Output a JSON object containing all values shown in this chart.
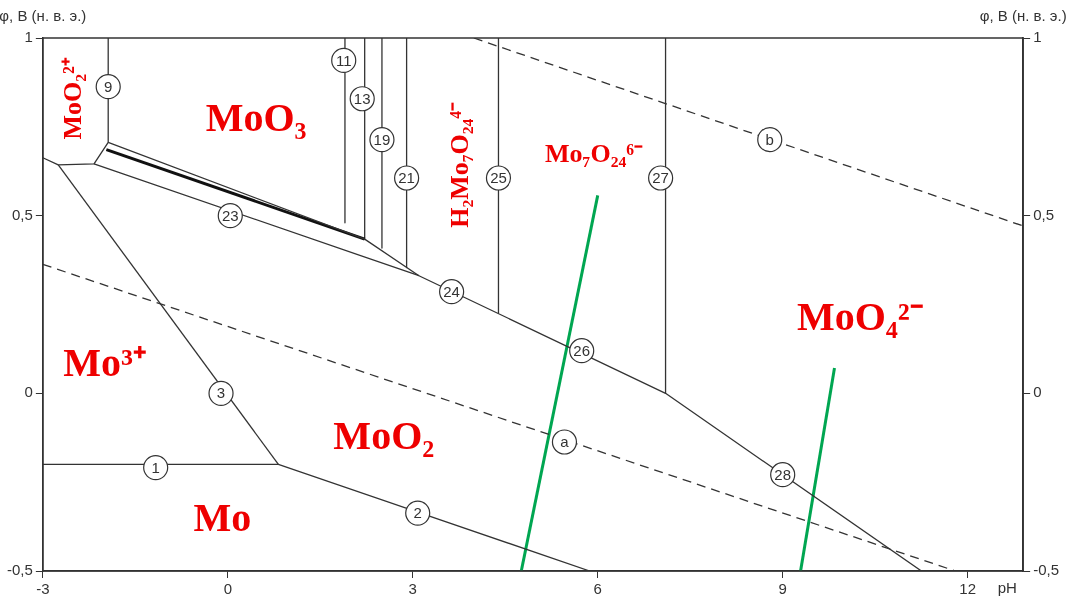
{
  "chart_data": {
    "type": "line",
    "xlabel": "pH",
    "ylabel": "φ, В (н. в. э.)",
    "y2label": "φ, В (н. в. э.)",
    "xlim": [
      -3,
      12.9
    ],
    "xticks": [
      -3,
      0,
      3,
      6,
      9,
      12
    ],
    "ylim": [
      -0.5,
      1
    ],
    "yticks": [
      {
        "value": -0.5,
        "label": "-0,5"
      },
      {
        "value": 0,
        "label": "0"
      },
      {
        "value": 0.5,
        "label": "0,5"
      },
      {
        "value": 1,
        "label": "1"
      }
    ],
    "y2lim": [
      -0.5,
      1
    ],
    "y2ticks": [
      {
        "value": -0.5,
        "label": "-0,5"
      },
      {
        "value": 0,
        "label": "0"
      },
      {
        "value": 0.5,
        "label": "0,5"
      },
      {
        "value": 1,
        "label": "1"
      }
    ],
    "grid": false,
    "legend": false,
    "marker": "none",
    "series": [
      {
        "type": "line",
        "color": "#333333",
        "x": [
          -3,
          -2.75,
          -2.17,
          -1.94,
          -1.94
        ],
        "values": [
          0.663,
          0.643,
          0.646,
          0.706,
          1
        ]
      },
      {
        "type": "line",
        "color": "#333333",
        "x": [
          -3,
          0.82,
          5.87
        ],
        "values": [
          -0.2,
          -0.2,
          -0.5
        ]
      },
      {
        "type": "line",
        "color": "#333333",
        "x": [
          -2.75,
          0.82
        ],
        "values": [
          0.643,
          -0.2
        ]
      },
      {
        "type": "line",
        "color": "#333333",
        "x": [
          -2.17,
          3.1,
          7.1,
          11.25
        ],
        "values": [
          0.646,
          0.331,
          0,
          -0.5
        ]
      },
      {
        "type": "line",
        "color": "#333333",
        "x": [
          -1.94,
          2.22,
          3.1
        ],
        "values": [
          0.706,
          0.434,
          0.331
        ]
      },
      {
        "type": "line",
        "color": "#111111",
        "x": [
          -1.97,
          2.22
        ],
        "values": [
          0.686,
          0.434
        ]
      },
      {
        "type": "line",
        "color": "#333333",
        "x": [
          1.9,
          1.9
        ],
        "values": [
          1,
          0.48
        ]
      },
      {
        "type": "line",
        "color": "#333333",
        "x": [
          2.22,
          2.22
        ],
        "values": [
          1,
          0.434
        ]
      },
      {
        "type": "line",
        "color": "#333333",
        "x": [
          2.5,
          2.5
        ],
        "values": [
          1,
          0.409
        ]
      },
      {
        "type": "line",
        "color": "#333333",
        "x": [
          2.9,
          2.9
        ],
        "values": [
          1,
          0.354
        ]
      },
      {
        "type": "line",
        "color": "#333333",
        "x": [
          4.39,
          4.39
        ],
        "values": [
          1,
          0.226
        ]
      },
      {
        "type": "line",
        "color": "#333333",
        "x": [
          7.1,
          7.1
        ],
        "values": [
          1,
          0
        ]
      },
      {
        "type": "line",
        "color": "#333333",
        "line_style": "dashed",
        "x": [
          -3,
          11.8
        ],
        "values": [
          0.363,
          -0.5
        ]
      },
      {
        "type": "line",
        "color": "#333333",
        "line_style": "dashed",
        "x": [
          3.99,
          12.9
        ],
        "values": [
          1,
          0.471
        ]
      },
      {
        "type": "line",
        "color": "#00a651",
        "x": [
          6,
          4.76
        ],
        "values": [
          0.557,
          -0.5
        ]
      },
      {
        "type": "line",
        "color": "#00a651",
        "x": [
          9.84,
          9.29
        ],
        "values": [
          0.071,
          -0.5
        ]
      }
    ],
    "annotations": [
      "MoO₂²⁺",
      "MoO₃",
      "H₂Mo₇O₂₄⁴⁻",
      "Mo₇O₂₄⁶⁻",
      "MoO₄²⁻",
      "Mo³⁺",
      "MoO₂",
      "Mo",
      {
        "text": "9",
        "x": -1.94,
        "y": 0.863
      },
      {
        "text": "11",
        "x": 1.88,
        "y": 0.937
      },
      {
        "text": "13",
        "x": 2.18,
        "y": 0.829
      },
      {
        "text": "19",
        "x": 2.5,
        "y": 0.714
      },
      {
        "text": "21",
        "x": 2.9,
        "y": 0.606
      },
      {
        "text": "23",
        "x": 0.04,
        "y": 0.5
      },
      {
        "text": "24",
        "x": 3.63,
        "y": 0.286
      },
      {
        "text": "25",
        "x": 4.39,
        "y": 0.606
      },
      {
        "text": "26",
        "x": 5.74,
        "y": 0.12
      },
      {
        "text": "27",
        "x": 7.02,
        "y": 0.606
      },
      {
        "text": "28",
        "x": 9.0,
        "y": -0.229
      },
      {
        "text": "3",
        "x": -0.11,
        "y": 0
      },
      {
        "text": "1",
        "x": -1.17,
        "y": -0.209
      },
      {
        "text": "2",
        "x": 3.08,
        "y": -0.337
      },
      {
        "text": "a",
        "x": 5.46,
        "y": -0.137
      },
      {
        "text": "b",
        "x": 8.79,
        "y": 0.714
      }
    ]
  }
}
